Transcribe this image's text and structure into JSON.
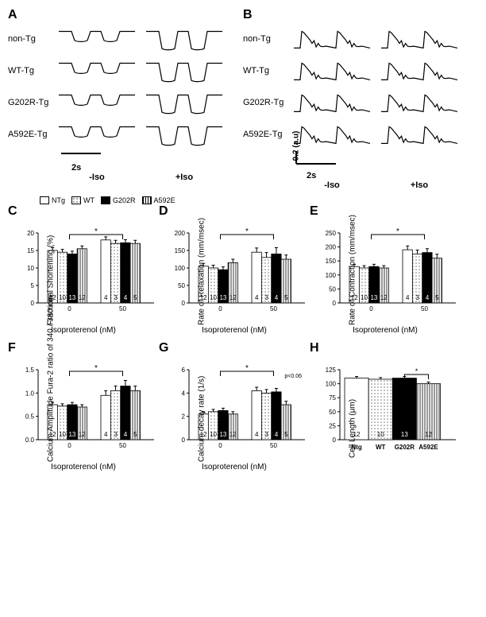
{
  "panelA": {
    "label": "A",
    "groups": [
      "non-Tg",
      "WT-Tg",
      "G202R-Tg",
      "A592E-Tg"
    ],
    "conditions": [
      "-Iso",
      "+Iso"
    ],
    "scalebar_x": "2s",
    "trace_color": "#000000"
  },
  "panelB": {
    "label": "B",
    "groups": [
      "non-Tg",
      "WT-Tg",
      "G202R-Tg",
      "A592E-Tg"
    ],
    "conditions": [
      "-Iso",
      "+Iso"
    ],
    "scalebar_x": "2s",
    "scalebar_y": "0.2 (a.u)",
    "trace_color": "#000000"
  },
  "legend": {
    "items": [
      {
        "label": "NTg",
        "fill": "#ffffff",
        "pattern": "none"
      },
      {
        "label": "WT",
        "fill": "#ffffff",
        "pattern": "dots"
      },
      {
        "label": "G202R",
        "fill": "#000000",
        "pattern": "none"
      },
      {
        "label": "A592E",
        "fill": "#ffffff",
        "pattern": "vlines"
      }
    ]
  },
  "panelC": {
    "label": "C",
    "type": "bar",
    "ylabel": "Fractional  Shortening (%)",
    "xlabel": "Isoproterenol (nM)",
    "ylim": [
      0,
      20
    ],
    "ytick_step": 5,
    "x_groups": [
      "0",
      "50"
    ],
    "series": [
      "NTg",
      "WT",
      "G202R",
      "A592E"
    ],
    "values": [
      [
        15.0,
        14.5,
        14.0,
        15.5
      ],
      [
        18.0,
        17.0,
        17.2,
        17.0
      ]
    ],
    "errors": [
      [
        0.8,
        0.8,
        0.8,
        0.8
      ],
      [
        0.9,
        0.9,
        0.9,
        0.9
      ]
    ],
    "n_labels": [
      [
        "12",
        "10",
        "13",
        "12"
      ],
      [
        "4",
        "3",
        "4",
        "5"
      ]
    ],
    "sig": "*"
  },
  "panelD": {
    "label": "D",
    "type": "bar",
    "ylabel": "Rate of  Relaxation (mm/msec)",
    "xlabel": "Isoproterenol (nM)",
    "ylim": [
      0,
      200
    ],
    "ytick_step": 50,
    "x_groups": [
      "0",
      "50"
    ],
    "values": [
      [
        105,
        100,
        95,
        115
      ],
      [
        145,
        130,
        140,
        125
      ]
    ],
    "errors": [
      [
        8,
        8,
        8,
        10
      ],
      [
        12,
        14,
        18,
        12
      ]
    ],
    "n_labels": [
      [
        "12",
        "10",
        "13",
        "12"
      ],
      [
        "4",
        "3",
        "4",
        "5"
      ]
    ],
    "sig": "*"
  },
  "panelE": {
    "label": "E",
    "type": "bar",
    "ylabel": "Rate of  Contraction (mm/msec)",
    "xlabel": "Isoproterenol (nM)",
    "ylim": [
      0,
      250
    ],
    "ytick_step": 50,
    "x_groups": [
      "0",
      "50"
    ],
    "values": [
      [
        130,
        125,
        130,
        125
      ],
      [
        190,
        175,
        180,
        160
      ]
    ],
    "errors": [
      [
        8,
        8,
        8,
        8
      ],
      [
        14,
        14,
        14,
        14
      ]
    ],
    "n_labels": [
      [
        "12",
        "10",
        "13",
        "12"
      ],
      [
        "4",
        "3",
        "4",
        "5"
      ]
    ],
    "sig": "*"
  },
  "panelF": {
    "label": "F",
    "type": "bar",
    "ylabel": "Calcium Amplitude\nFura-2 ratio of 340 / 380 nm",
    "xlabel": "Isoproterenol (nM)",
    "ylim": [
      0.0,
      1.5
    ],
    "ytick_step": 0.5,
    "x_groups": [
      "0",
      "50"
    ],
    "values": [
      [
        0.75,
        0.72,
        0.75,
        0.7
      ],
      [
        0.95,
        1.05,
        1.15,
        1.05
      ]
    ],
    "errors": [
      [
        0.05,
        0.05,
        0.05,
        0.05
      ],
      [
        0.1,
        0.1,
        0.12,
        0.1
      ]
    ],
    "n_labels": [
      [
        "12",
        "10",
        "13",
        "12"
      ],
      [
        "4",
        "3",
        "4",
        "5"
      ]
    ],
    "sig": "*"
  },
  "panelG": {
    "label": "G",
    "type": "bar",
    "ylabel": "Calcium decay rate  (1/s)",
    "xlabel": "Isoproterenol (nM)",
    "ylim": [
      0,
      6
    ],
    "ytick_step": 2,
    "x_groups": [
      "0",
      "50"
    ],
    "values": [
      [
        2.2,
        2.4,
        2.5,
        2.2
      ],
      [
        4.2,
        4.0,
        4.1,
        3.0
      ]
    ],
    "errors": [
      [
        0.2,
        0.2,
        0.2,
        0.2
      ],
      [
        0.3,
        0.3,
        0.3,
        0.3
      ]
    ],
    "n_labels": [
      [
        "12",
        "10",
        "13",
        "12"
      ],
      [
        "4",
        "3",
        "4",
        "5"
      ]
    ],
    "sig": "*",
    "extra_sig": "p<0.06"
  },
  "panelH": {
    "label": "H",
    "type": "bar",
    "ylabel": "Cell Length  (μm)",
    "xlabel": "",
    "ylim": [
      0,
      125
    ],
    "ytick_step": 25,
    "x_groups": [
      "Ntg",
      "WT",
      "G202R",
      "A592E"
    ],
    "values": [
      [
        110,
        108,
        110,
        100
      ]
    ],
    "errors": [
      [
        3,
        3,
        3,
        3
      ]
    ],
    "n_labels": [
      [
        "12",
        "10",
        "13",
        "12"
      ]
    ],
    "single_group": true,
    "sig": "*"
  },
  "colors": {
    "axis": "#000000",
    "text": "#000000",
    "bg": "#ffffff"
  },
  "fonts": {
    "panel_label_size": 16,
    "axis_label_size": 10,
    "tick_size": 9
  }
}
